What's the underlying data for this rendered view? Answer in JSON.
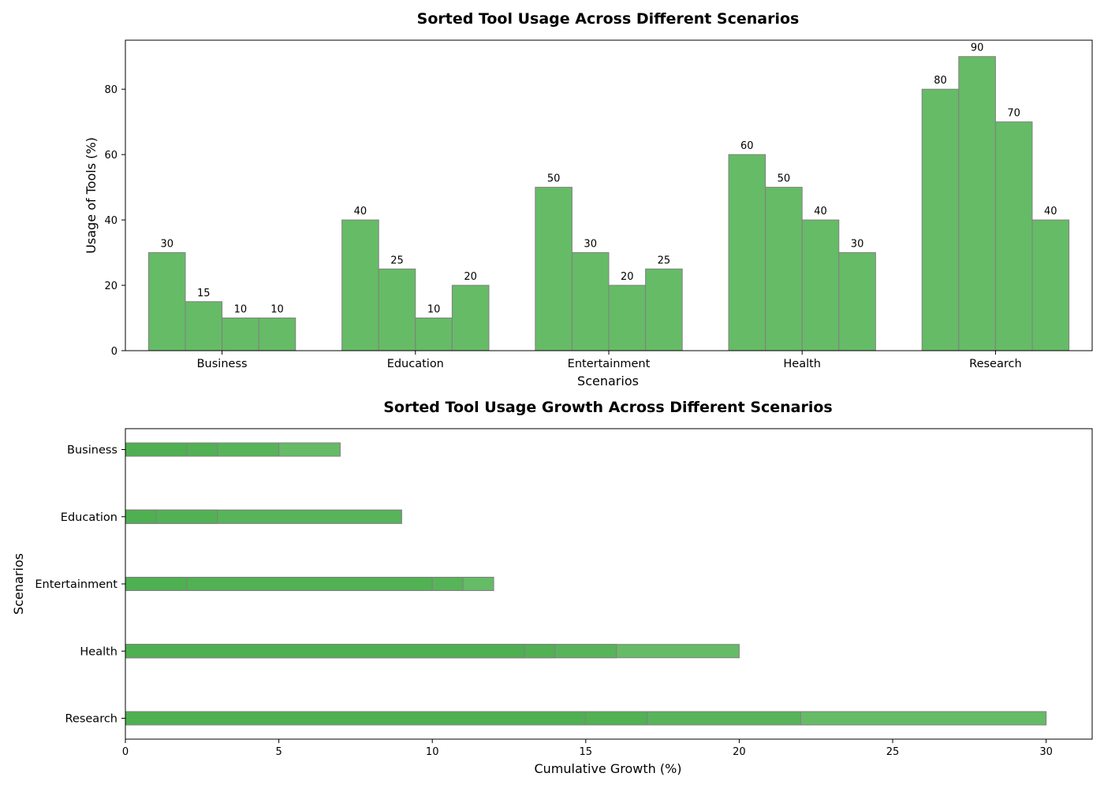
{
  "colors": {
    "bar_fill": "#66bb66",
    "bar_edge": "#808080",
    "growth_base": "#66bb66",
    "growth_overlay": "#4caf50"
  },
  "chart_data": [
    {
      "type": "bar",
      "title": "Sorted Tool Usage Across Different Scenarios",
      "xlabel": "Scenarios",
      "ylabel": "Usage of Tools (%)",
      "categories": [
        "Business",
        "Education",
        "Entertainment",
        "Health",
        "Research"
      ],
      "values": [
        [
          30,
          15,
          10,
          10
        ],
        [
          40,
          25,
          10,
          20
        ],
        [
          50,
          30,
          20,
          25
        ],
        [
          60,
          50,
          40,
          30
        ],
        [
          80,
          90,
          70,
          40
        ]
      ],
      "ylim": [
        0,
        95
      ],
      "yticks": [
        0,
        20,
        40,
        60,
        80
      ],
      "grid": false
    },
    {
      "type": "bar",
      "orientation": "horizontal",
      "stacking": "overlay",
      "title": "Sorted Tool Usage Growth Across Different Scenarios",
      "xlabel": "Cumulative Growth (%)",
      "ylabel": "Scenarios",
      "categories": [
        "Business",
        "Education",
        "Entertainment",
        "Health",
        "Research"
      ],
      "cumulative_values": [
        [
          2,
          3,
          5,
          7
        ],
        [
          1,
          3,
          9,
          9
        ],
        [
          2,
          10,
          11,
          12
        ],
        [
          13,
          14,
          16,
          20
        ],
        [
          15,
          17,
          22,
          30
        ]
      ],
      "xlim": [
        0,
        31.5
      ],
      "xticks": [
        0,
        5,
        10,
        15,
        20,
        25,
        30
      ],
      "grid": false
    }
  ]
}
